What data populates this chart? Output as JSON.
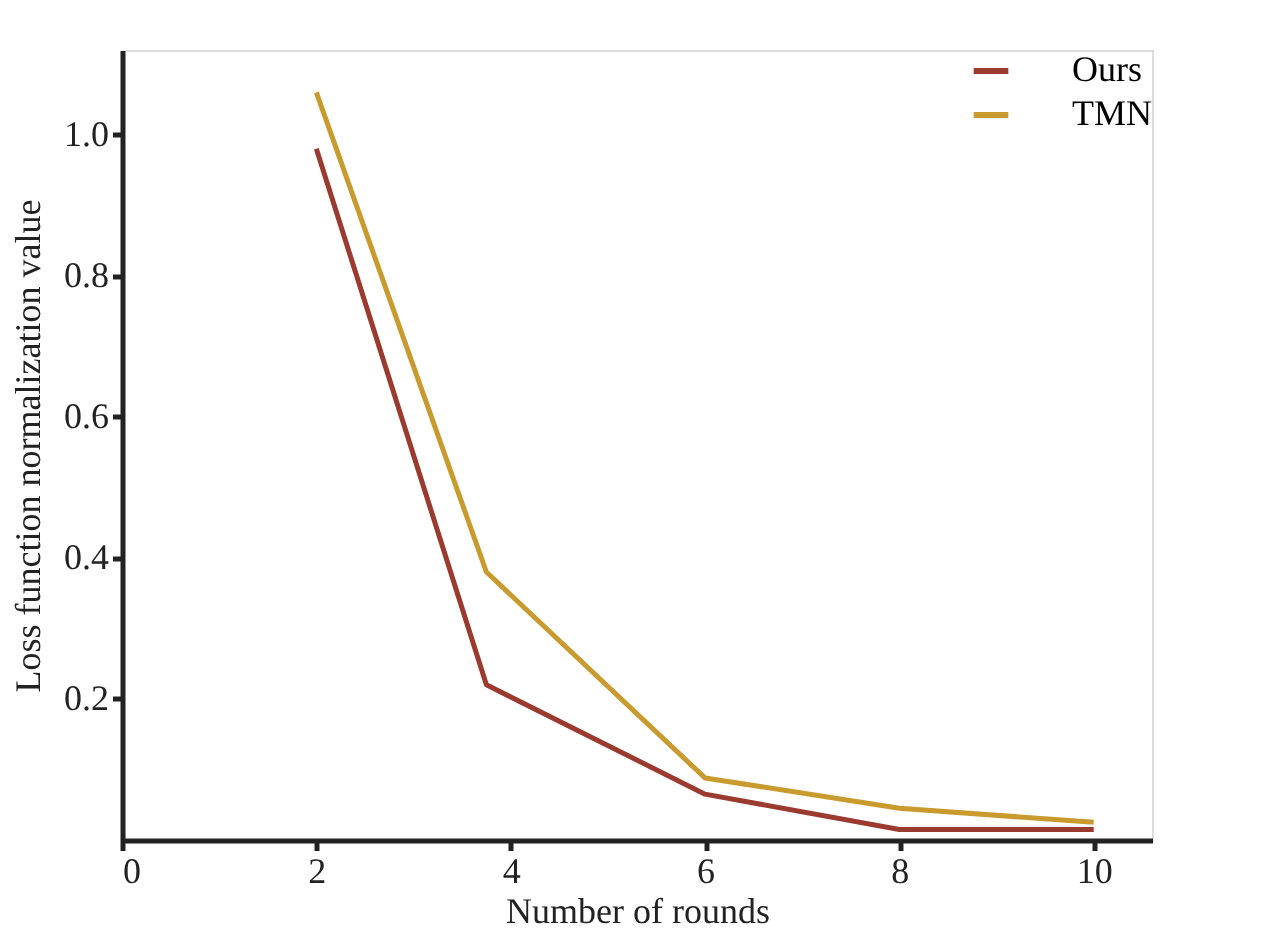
{
  "chart_data": {
    "type": "line",
    "xlabel": "Number of rounds",
    "ylabel": "Loss function normalization value",
    "series": [
      {
        "name": "Ours",
        "color": "#9b3a2e",
        "x": [
          2,
          3.75,
          6,
          8,
          10
        ],
        "values": [
          0.98,
          0.22,
          0.065,
          0.015,
          0.015
        ]
      },
      {
        "name": "TMN",
        "color": "#c99a2e",
        "x": [
          2,
          3.75,
          6,
          8,
          10
        ],
        "values": [
          1.06,
          0.38,
          0.088,
          0.045,
          0.025
        ]
      }
    ],
    "xlim": [
      0,
      10.6
    ],
    "xticks": [
      0,
      2,
      4,
      6,
      8,
      10
    ],
    "ylim": [
      0,
      1.12
    ],
    "yticks": [
      {
        "value": 0.2,
        "label": "0.2"
      },
      {
        "value": 0.4,
        "label": "0.4"
      },
      {
        "value": 0.6,
        "label": "0.6"
      },
      {
        "value": 0.8,
        "label": "0.8"
      },
      {
        "value": 1,
        "label": "1.0"
      }
    ],
    "grid": false,
    "legend": "top right",
    "marker": "none",
    "line_style": "solid"
  }
}
